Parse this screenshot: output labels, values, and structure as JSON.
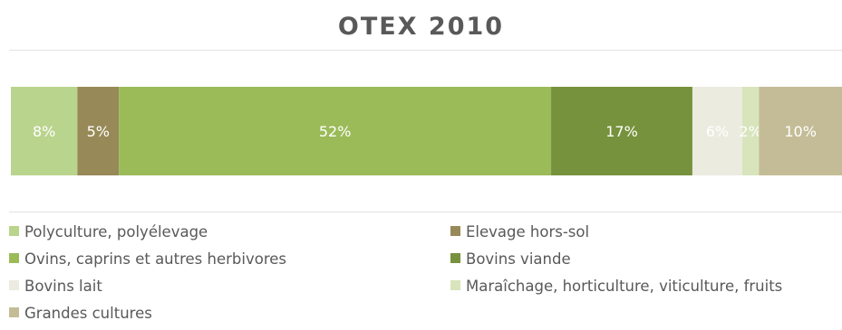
{
  "chart_data": {
    "type": "bar",
    "orientation": "horizontal",
    "stacked": "100%",
    "title": "OTEX 2010",
    "categories": [
      "OTEX 2010"
    ],
    "series": [
      {
        "name": "Polyculture, polyélevage",
        "values": [
          8
        ],
        "label": "8%",
        "color": "#b9d48d"
      },
      {
        "name": "Elevage hors-sol",
        "values": [
          5
        ],
        "label": "5%",
        "color": "#988a58"
      },
      {
        "name": "Ovins, caprins et autres herbivores",
        "values": [
          52
        ],
        "label": "52%",
        "color": "#9bbb59"
      },
      {
        "name": "Bovins viande",
        "values": [
          17
        ],
        "label": "17%",
        "color": "#76923c"
      },
      {
        "name": "Bovins lait",
        "values": [
          6
        ],
        "label": "6%",
        "color": "#ecebe0"
      },
      {
        "name": "Maraîchage, horticulture, viticulture, fruits",
        "values": [
          2
        ],
        "label": "2%",
        "color": "#d8e4bc"
      },
      {
        "name": "Grandes cultures",
        "values": [
          10
        ],
        "label": "10%",
        "color": "#c4bc96"
      }
    ],
    "xlim": [
      0,
      100
    ],
    "grid": false,
    "legend": "bottom",
    "data_label_color": "#ffffff"
  }
}
